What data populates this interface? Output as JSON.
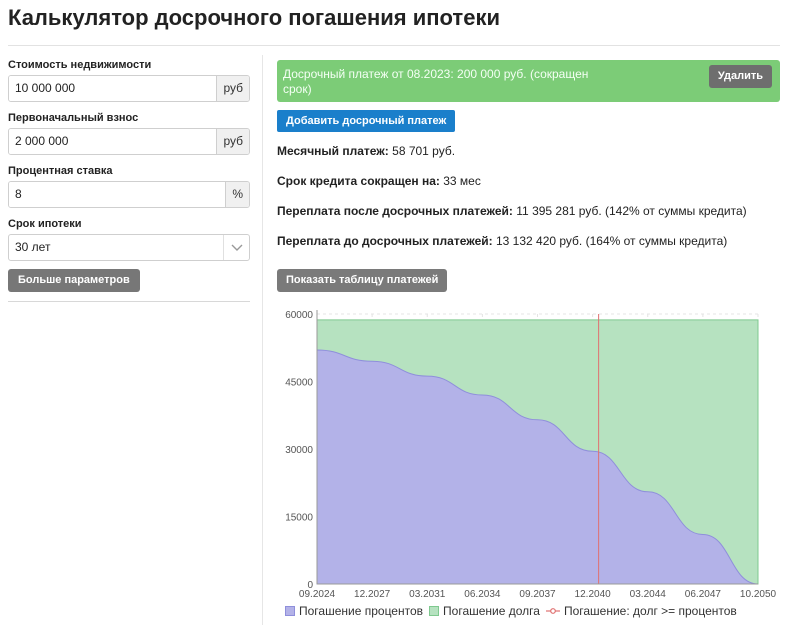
{
  "title": "Калькулятор досрочного погашения ипотеки",
  "form": {
    "price_label": "Стоимость недвижимости",
    "price_value": "10 000 000",
    "price_unit": "руб",
    "down_label": "Первоначальный взнос",
    "down_value": "2 000 000",
    "down_unit": "руб",
    "rate_label": "Процентная ставка",
    "rate_value": "8",
    "rate_unit": "%",
    "term_label": "Срок ипотеки",
    "term_value": "30 лет",
    "more_button": "Больше параметров"
  },
  "prepayment": {
    "text": "Досрочный платеж от 08.2023: 200 000 руб. (сокращен срок)",
    "delete_button": "Удалить"
  },
  "add_button": "Добавить досрочный платеж",
  "results": {
    "monthly_label": "Месячный платеж:",
    "monthly_value": " 58 701 руб.",
    "term_reduced_label": "Срок кредита сокращен на:",
    "term_reduced_value": " 33 мес",
    "overpay_after_label": "Переплата после досрочных платежей:",
    "overpay_after_value": " 11 395 281 руб. (142% от суммы кредита)",
    "overpay_before_label": "Переплата до досрочных платежей:",
    "overpay_before_value": " 13 132 420 руб. (164% от суммы кредита)"
  },
  "show_table_button": "Показать таблицу платежей",
  "colors": {
    "interest": "#b3b2e8",
    "interest_line": "#8f8fdb",
    "principal": "#b6e2c0",
    "principal_line": "#7fc98f",
    "marker": "#e07070"
  },
  "chart_data": {
    "type": "area",
    "x_ticks": [
      "09.2024",
      "12.2027",
      "03.2031",
      "06.2034",
      "09.2037",
      "12.2040",
      "03.2044",
      "06.2047",
      "10.2050"
    ],
    "y_ticks": [
      0,
      15000,
      30000,
      45000,
      60000
    ],
    "ylim": [
      0,
      60000
    ],
    "series": [
      {
        "name": "Погашение процентов",
        "values": [
          52000,
          49500,
          46200,
          42000,
          36500,
          29500,
          20500,
          11000,
          0
        ]
      },
      {
        "name": "Погашение долга",
        "values": [
          58701,
          58701,
          58701,
          58701,
          58701,
          58701,
          58701,
          58701,
          58701
        ]
      }
    ],
    "marker_label": "Погашение: долг >= процентов",
    "marker_x": "12.2040",
    "legend_position": "bottom"
  }
}
